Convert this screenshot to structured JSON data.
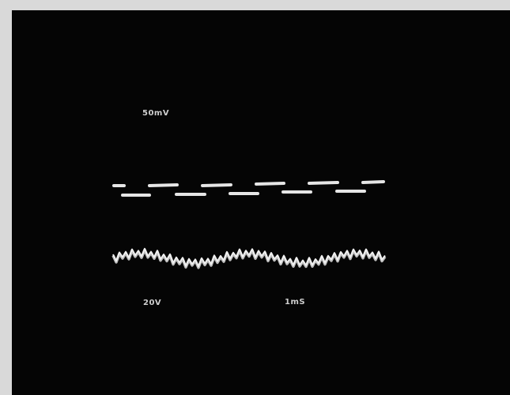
{
  "screen": {
    "labels": {
      "top_channel": "50mV",
      "bottom_channel": "20V",
      "timebase": "1mS"
    }
  }
}
